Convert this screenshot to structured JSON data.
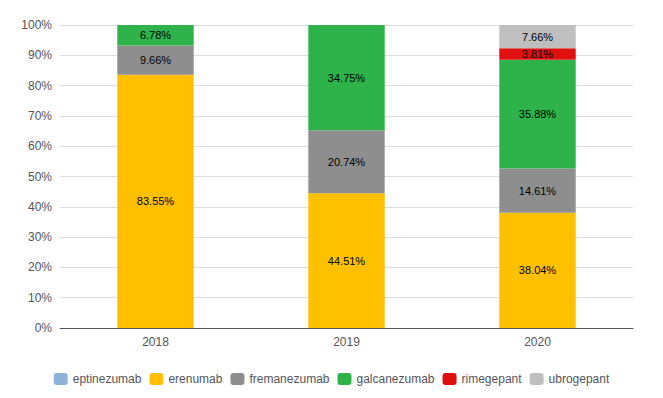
{
  "chart_data": {
    "type": "bar",
    "stacked": true,
    "categories": [
      "2018",
      "2019",
      "2020"
    ],
    "series": [
      {
        "name": "eptinezumab",
        "color": "#8db4d8",
        "values": [
          0.0,
          0.0,
          0.0
        ]
      },
      {
        "name": "erenumab",
        "color": "#ffc000",
        "values": [
          83.55,
          44.51,
          38.04
        ],
        "value_labels": [
          "83.55%",
          "44.51%",
          "38.04%"
        ]
      },
      {
        "name": "fremanezumab",
        "color": "#8e8e8e",
        "values": [
          9.66,
          20.74,
          14.61
        ],
        "value_labels": [
          "9.66%",
          "20.74%",
          "14.61%"
        ]
      },
      {
        "name": "galcanezumab",
        "color": "#2db34a",
        "values": [
          6.78,
          34.75,
          35.88
        ],
        "value_labels": [
          "6.78%",
          "34.75%",
          "35.88%"
        ]
      },
      {
        "name": "rimegepant",
        "color": "#e01010",
        "values": [
          0.0,
          0.0,
          3.81
        ],
        "value_labels": [
          null,
          null,
          "3.81%"
        ]
      },
      {
        "name": "ubrogepant",
        "color": "#bfbfbf",
        "values": [
          0.0,
          0.0,
          7.66
        ],
        "value_labels": [
          null,
          null,
          "7.66%"
        ]
      }
    ],
    "ylim": [
      0,
      100
    ],
    "yticks": [
      {
        "value": 0,
        "label": "0%"
      },
      {
        "value": 10,
        "label": "10%"
      },
      {
        "value": 20,
        "label": "20%"
      },
      {
        "value": 30,
        "label": "30%"
      },
      {
        "value": 40,
        "label": "40%"
      },
      {
        "value": 50,
        "label": "50%"
      },
      {
        "value": 60,
        "label": "60%"
      },
      {
        "value": 70,
        "label": "70%"
      },
      {
        "value": 80,
        "label": "80%"
      },
      {
        "value": 90,
        "label": "90%"
      },
      {
        "value": 100,
        "label": "100%"
      }
    ],
    "grid": true,
    "legend": "bottom",
    "data_labels": true
  }
}
